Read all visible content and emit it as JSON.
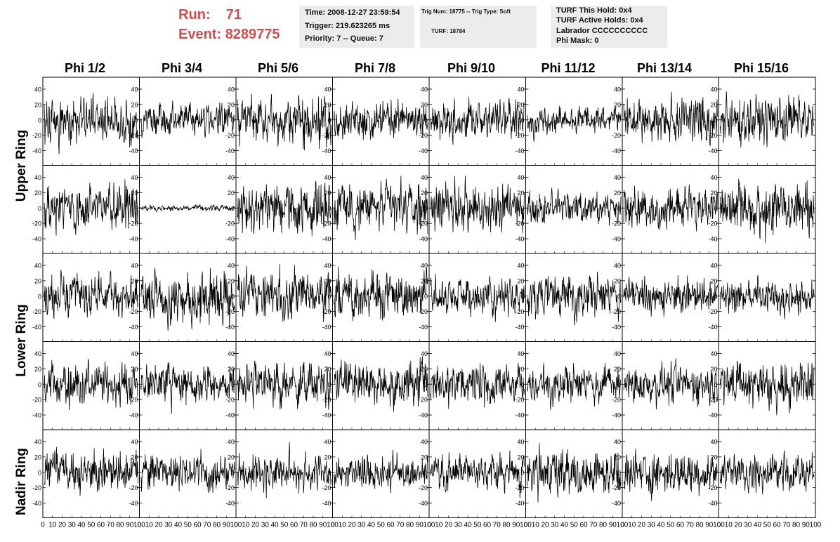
{
  "run_label": "Run:",
  "run_value": "71",
  "event_label": "Event:",
  "event_value": "8289775",
  "info_box_1": [
    "Time: 2008-12-27 23:59:54",
    "Trigger: 219.623265 ms",
    "Priority: 7 -- Queue: 7"
  ],
  "info_box_2": [
    "Trig Num: 18775 -- Trig Type: Soft",
    "TURF: 18784"
  ],
  "info_box_3": [
    "TURF This Hold: 0x4",
    "TURF Active Holds: 0x4",
    "Labrador CCCCCCCCCC",
    "Phi Mask: 0"
  ],
  "colors": {
    "run_text": "#cd4f4f",
    "info_bg": "#ececec",
    "trace": "#000000"
  },
  "chart_data": {
    "type": "line",
    "columns": [
      "Phi 1/2",
      "Phi 3/4",
      "Phi 5/6",
      "Phi 7/8",
      "Phi 9/10",
      "Phi 11/12",
      "Phi 13/14",
      "Phi 15/16"
    ],
    "row_labels": [
      "Upper Ring",
      "Lower Ring",
      "Nadir Ring"
    ],
    "ylim": [
      -50,
      50
    ],
    "yticks": [
      -40,
      -20,
      0,
      20,
      40
    ],
    "xlim": [
      0,
      100
    ],
    "xtick_labels": [
      "0",
      "10",
      "20",
      "30",
      "40",
      "50",
      "60",
      "70",
      "80",
      "90",
      "100"
    ],
    "samples_per_trace": 260,
    "traces": [
      [
        {
          "amp": 17,
          "seed": 11
        },
        {
          "amp": 11,
          "seed": 12
        },
        {
          "amp": 18,
          "seed": 13
        },
        {
          "amp": 14,
          "seed": 14
        },
        {
          "amp": 14,
          "seed": 15
        },
        {
          "amp": 10,
          "seed": 16
        },
        {
          "amp": 16,
          "seed": 17
        },
        {
          "amp": 17,
          "seed": 18
        }
      ],
      [
        {
          "amp": 17,
          "seed": 21
        },
        {
          "amp": 2,
          "seed": 22
        },
        {
          "amp": 19,
          "seed": 23
        },
        {
          "amp": 18,
          "seed": 24
        },
        {
          "amp": 17,
          "seed": 25
        },
        {
          "amp": 12,
          "seed": 26
        },
        {
          "amp": 15,
          "seed": 27
        },
        {
          "amp": 20,
          "seed": 28
        }
      ],
      [
        {
          "amp": 15,
          "seed": 31
        },
        {
          "amp": 19,
          "seed": 32
        },
        {
          "amp": 17,
          "seed": 33
        },
        {
          "amp": 16,
          "seed": 34
        },
        {
          "amp": 13,
          "seed": 35
        },
        {
          "amp": 15,
          "seed": 36
        },
        {
          "amp": 13,
          "seed": 37
        },
        {
          "amp": 12,
          "seed": 38
        }
      ],
      [
        {
          "amp": 15,
          "seed": 41
        },
        {
          "amp": 14,
          "seed": 42
        },
        {
          "amp": 16,
          "seed": 43
        },
        {
          "amp": 16,
          "seed": 44
        },
        {
          "amp": 14,
          "seed": 45
        },
        {
          "amp": 13,
          "seed": 46
        },
        {
          "amp": 14,
          "seed": 47
        },
        {
          "amp": 17,
          "seed": 48
        }
      ],
      [
        {
          "amp": 15,
          "seed": 51
        },
        {
          "amp": 14,
          "seed": 52
        },
        {
          "amp": 14,
          "seed": 53
        },
        {
          "amp": 13,
          "seed": 54
        },
        {
          "amp": 13,
          "seed": 55
        },
        {
          "amp": 17,
          "seed": 56
        },
        {
          "amp": 16,
          "seed": 57
        },
        {
          "amp": 13,
          "seed": 58
        }
      ]
    ]
  }
}
